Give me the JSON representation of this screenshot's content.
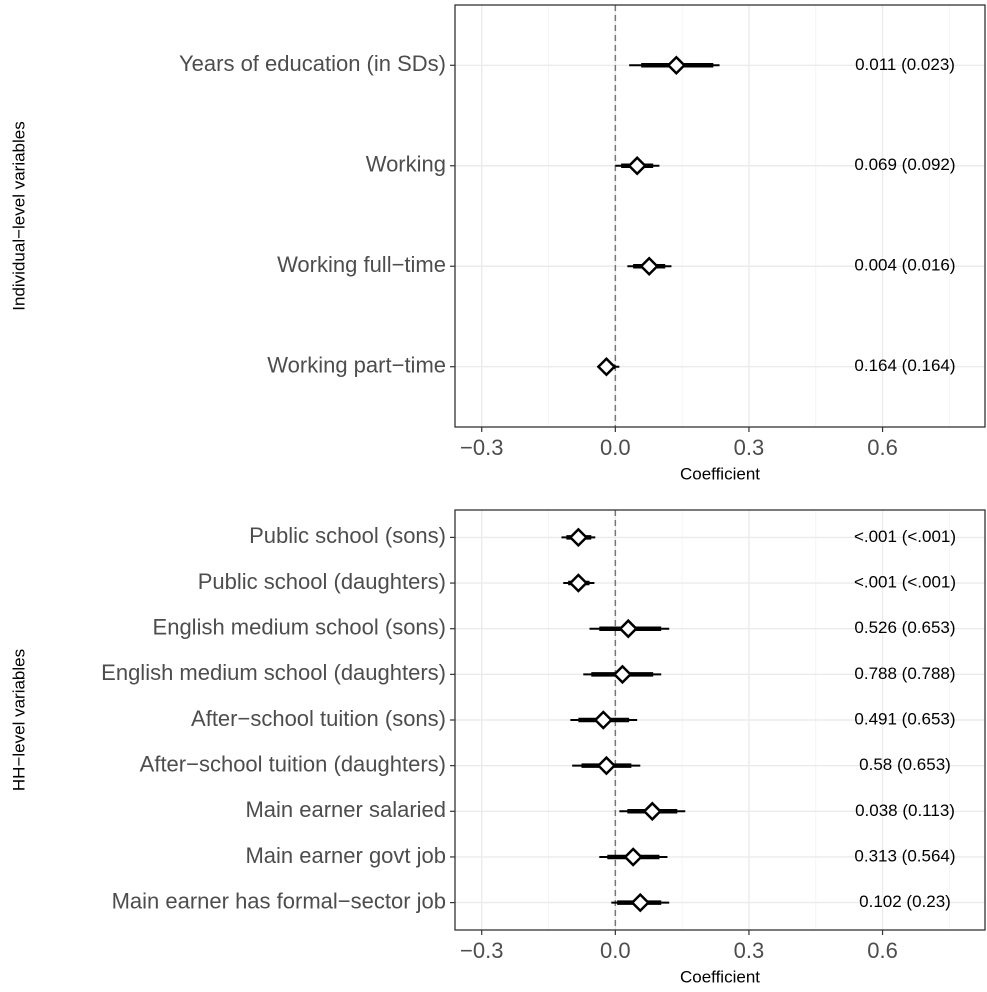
{
  "chart_data": [
    {
      "type": "coefplot",
      "y_axis_title": "Individual−level variables",
      "x_axis_title": "Coefficient",
      "categories": [
        "Years of education (in SDs)",
        "Working",
        "Working full−time",
        "Working part−time"
      ],
      "estimates": [
        0.137,
        0.049,
        0.076,
        -0.02
      ],
      "lower": [
        0.031,
        0.0,
        0.027,
        -0.04
      ],
      "upper": [
        0.234,
        0.099,
        0.126,
        0.009
      ],
      "lower_inner": [
        0.058,
        0.013,
        0.04,
        -0.034
      ],
      "upper_inner": [
        0.22,
        0.085,
        0.112,
        0.0
      ],
      "right_labels": [
        "0.011 (0.023)",
        "0.069 (0.092)",
        "0.004 (0.016)",
        "0.164 (0.164)"
      ],
      "xlim": [
        -0.36,
        0.83
      ],
      "xticks": [
        {
          "value": -0.3,
          "label": "−0.3"
        },
        {
          "value": 0,
          "label": "0.0"
        },
        0.3,
        0.6
      ],
      "x_minor_grid": [
        -0.15,
        0.15,
        0.45,
        0.75
      ],
      "ref_line": 0,
      "grid": true,
      "color": "#000000"
    },
    {
      "type": "coefplot",
      "y_axis_title": "HH−level variables",
      "x_axis_title": "Coefficient",
      "categories": [
        "Public school (sons)",
        "Public school (daughters)",
        "English medium school (sons)",
        "English medium school (daughters)",
        "After−school tuition (sons)",
        "After−school tuition (daughters)",
        "Main earner salaried",
        "Main earner govt job",
        "Main earner has formal−sector job"
      ],
      "estimates": [
        -0.083,
        -0.083,
        0.029,
        0.016,
        -0.027,
        -0.02,
        0.083,
        0.04,
        0.056
      ],
      "lower": [
        -0.121,
        -0.117,
        -0.058,
        -0.072,
        -0.101,
        -0.097,
        0.009,
        -0.036,
        -0.009
      ],
      "upper": [
        -0.045,
        -0.047,
        0.121,
        0.103,
        0.049,
        0.056,
        0.157,
        0.117,
        0.121
      ],
      "lower_inner": [
        -0.11,
        -0.106,
        -0.036,
        -0.054,
        -0.083,
        -0.076,
        0.027,
        -0.018,
        0.004
      ],
      "upper_inner": [
        -0.054,
        -0.058,
        0.103,
        0.085,
        0.031,
        0.036,
        0.139,
        0.099,
        0.103
      ],
      "right_labels": [
        "<.001 (<.001)",
        "<.001 (<.001)",
        "0.526 (0.653)",
        "0.788 (0.788)",
        "0.491 (0.653)",
        "0.58 (0.653)",
        "0.038 (0.113)",
        "0.313 (0.564)",
        "0.102 (0.23)"
      ],
      "xlim": [
        -0.36,
        0.83
      ],
      "xticks": [
        {
          "value": -0.3,
          "label": "−0.3"
        },
        {
          "value": 0,
          "label": "0.0"
        },
        0.3,
        0.6
      ],
      "x_minor_grid": [
        -0.15,
        0.15,
        0.45,
        0.75
      ],
      "ref_line": 0,
      "grid": true,
      "color": "#000000"
    }
  ]
}
